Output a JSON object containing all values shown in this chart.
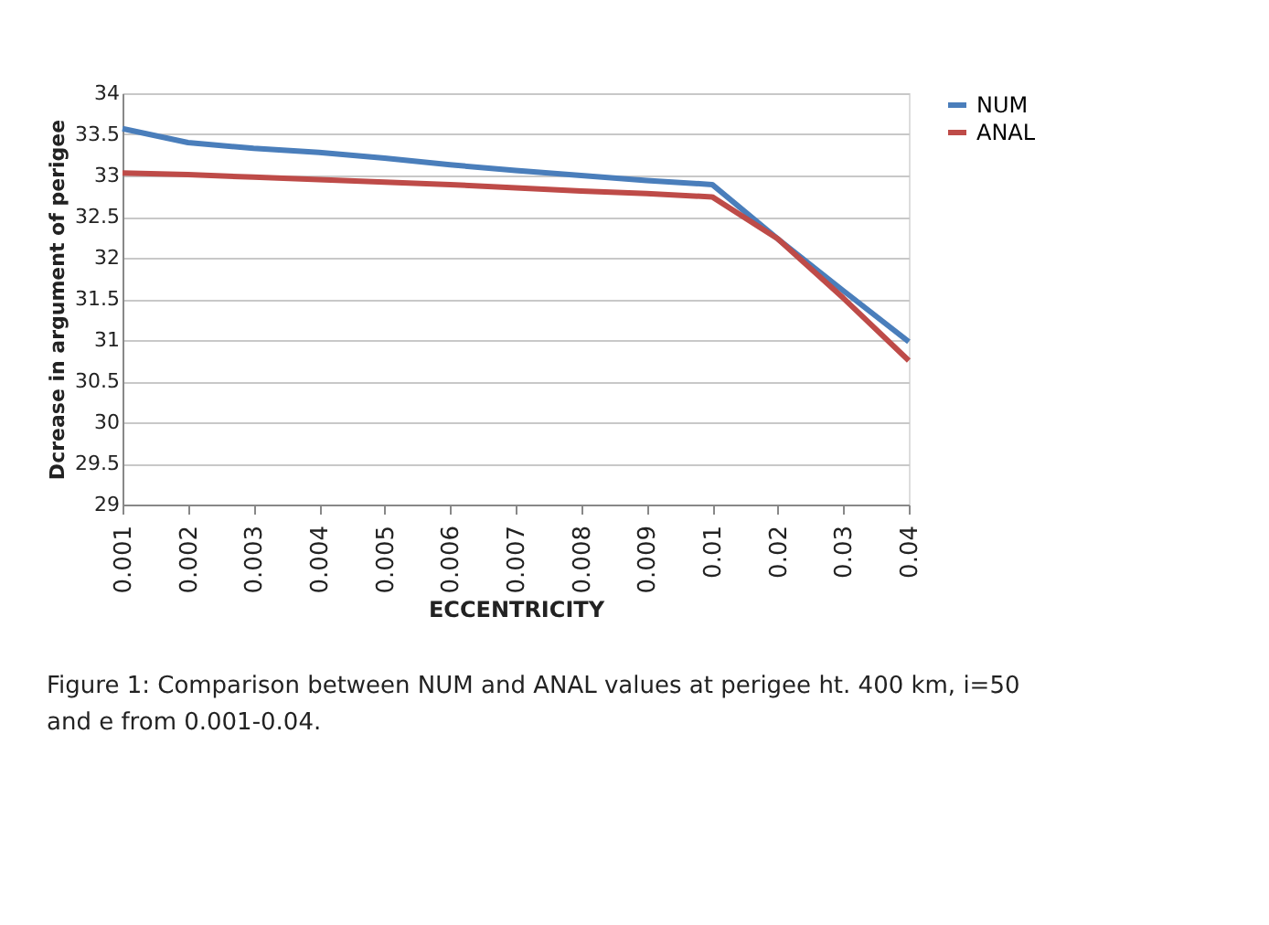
{
  "chart_data": {
    "type": "line",
    "xlabel": "ECCENTRICITY",
    "ylabel": "Dcrease in argument of perigee",
    "categories": [
      "0.001",
      "0.002",
      "0.003",
      "0.004",
      "0.005",
      "0.006",
      "0.007",
      "0.008",
      "0.009",
      "0.01",
      "0.02",
      "0.03",
      "0.04"
    ],
    "series": [
      {
        "name": "NUM",
        "color": "#4a7ebb",
        "values": [
          33.57,
          33.4,
          33.33,
          33.28,
          33.21,
          33.13,
          33.06,
          33.0,
          32.94,
          32.89,
          32.23,
          31.6,
          30.98
        ]
      },
      {
        "name": "ANAL",
        "color": "#be4b48",
        "values": [
          33.03,
          33.01,
          32.98,
          32.95,
          32.92,
          32.89,
          32.85,
          32.81,
          32.78,
          32.74,
          32.23,
          31.51,
          30.75
        ]
      }
    ],
    "ylim": [
      29,
      34
    ],
    "yticks": [
      29,
      29.5,
      30,
      30.5,
      31,
      31.5,
      32,
      32.5,
      33,
      33.5,
      34
    ],
    "grid": "y",
    "legend": "right",
    "marker": "none",
    "line_style": "solid",
    "annotations": [
      "Figure 1: Comparison between NUM and ANAL values at perigee ht. 400 km, i=50 and e from 0.001-0.04."
    ]
  }
}
